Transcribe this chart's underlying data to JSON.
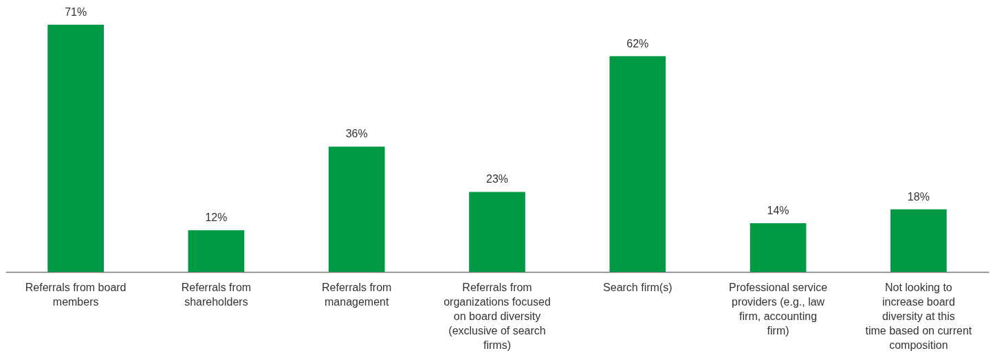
{
  "chart_data": {
    "type": "bar",
    "categories": [
      "Referrals from board members",
      "Referrals from shareholders",
      "Referrals from management",
      "Referrals from organizations focused on board diversity (exclusive of search firms)",
      "Search firm(s)",
      "Professional service providers (e.g., law firm, accounting firm)",
      "Not looking to increase board diversity at this time based on current composition"
    ],
    "values": [
      71,
      12,
      36,
      23,
      62,
      14,
      18
    ],
    "value_labels": [
      "71%",
      "12%",
      "36%",
      "23%",
      "62%",
      "14%",
      "18%"
    ],
    "color": "#009a44",
    "grid": false
  }
}
